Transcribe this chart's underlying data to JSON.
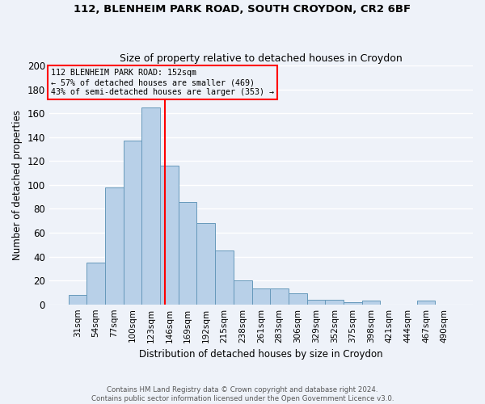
{
  "title_line1": "112, BLENHEIM PARK ROAD, SOUTH CROYDON, CR2 6BF",
  "title_line2": "Size of property relative to detached houses in Croydon",
  "xlabel": "Distribution of detached houses by size in Croydon",
  "ylabel": "Number of detached properties",
  "footer_line1": "Contains HM Land Registry data © Crown copyright and database right 2024.",
  "footer_line2": "Contains public sector information licensed under the Open Government Licence v3.0.",
  "bin_labels": [
    "31sqm",
    "54sqm",
    "77sqm",
    "100sqm",
    "123sqm",
    "146sqm",
    "169sqm",
    "192sqm",
    "215sqm",
    "238sqm",
    "261sqm",
    "283sqm",
    "306sqm",
    "329sqm",
    "352sqm",
    "375sqm",
    "398sqm",
    "421sqm",
    "444sqm",
    "467sqm",
    "490sqm"
  ],
  "bar_heights": [
    8,
    35,
    98,
    137,
    165,
    116,
    86,
    68,
    45,
    20,
    13,
    13,
    9,
    4,
    4,
    2,
    3,
    0,
    0,
    3,
    0
  ],
  "bar_color": "#b8d0e8",
  "bar_edge_color": "#6699bb",
  "vline_color": "red",
  "vline_position": 4.76,
  "annotation_label": "112 BLENHEIM PARK ROAD: 152sqm",
  "annotation_line2": "← 57% of detached houses are smaller (469)",
  "annotation_line3": "43% of semi-detached houses are larger (353) →",
  "ylim": [
    0,
    200
  ],
  "yticks": [
    0,
    20,
    40,
    60,
    80,
    100,
    120,
    140,
    160,
    180,
    200
  ],
  "background_color": "#eef2f9",
  "grid_color": "#ffffff"
}
